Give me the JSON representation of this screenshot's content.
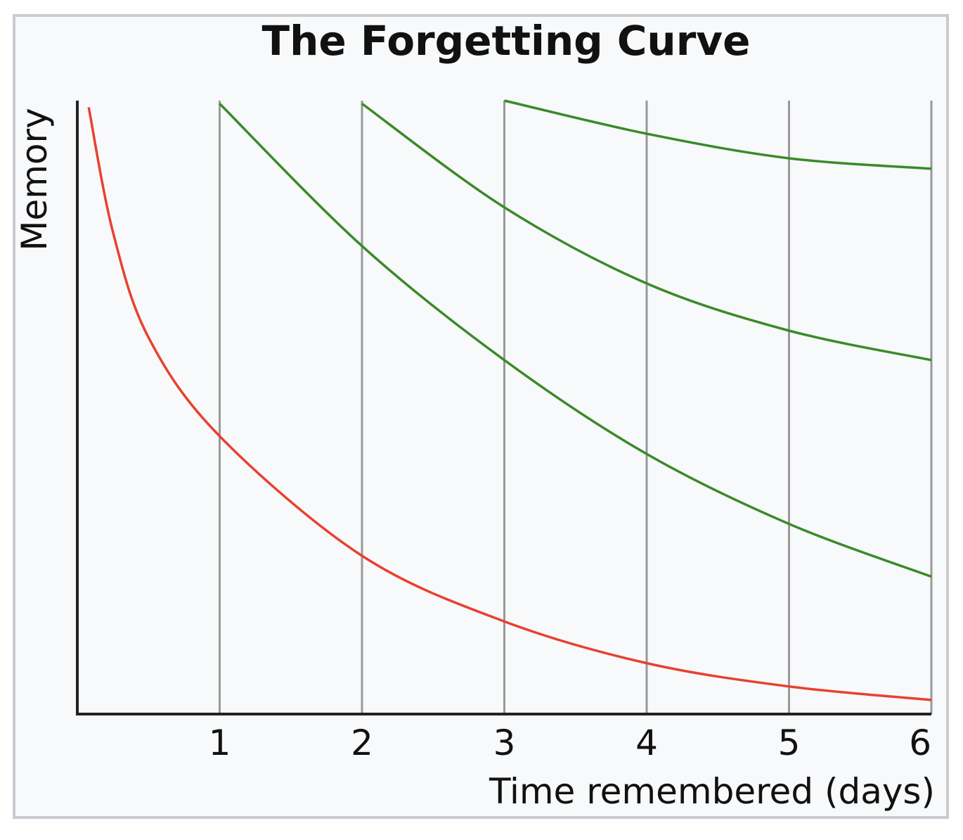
{
  "chart_data": {
    "type": "line",
    "title": "The Forgetting Curve",
    "x_label": "Time remembered (days)",
    "y_label": "Memory",
    "xlim": [
      0,
      6
    ],
    "ylim": [
      0,
      100
    ],
    "xticks": [
      1,
      2,
      3,
      4,
      5,
      6
    ],
    "grid": true,
    "series": [
      {
        "color": "#e8412f",
        "x": [
          0.08,
          0.25,
          0.5,
          1,
          2,
          3,
          4,
          5,
          6
        ],
        "values": [
          98.9,
          78.6,
          61.4,
          45.3,
          25.8,
          15.1,
          8.3,
          4.5,
          2.3
        ]
      },
      {
        "color": "#3a8a2a",
        "x": [
          1,
          2,
          3,
          4,
          5,
          6
        ],
        "values": [
          99.5,
          76.3,
          57.7,
          42.4,
          31.0,
          22.4
        ]
      },
      {
        "color": "#3a8a2a",
        "x": [
          2,
          3,
          4,
          5,
          6
        ],
        "values": [
          99.5,
          82.6,
          70.2,
          62.5,
          57.7
        ]
      },
      {
        "color": "#3a8a2a",
        "x": [
          3,
          4,
          5,
          6
        ],
        "values": [
          100,
          94.6,
          90.6,
          88.9
        ]
      }
    ]
  }
}
